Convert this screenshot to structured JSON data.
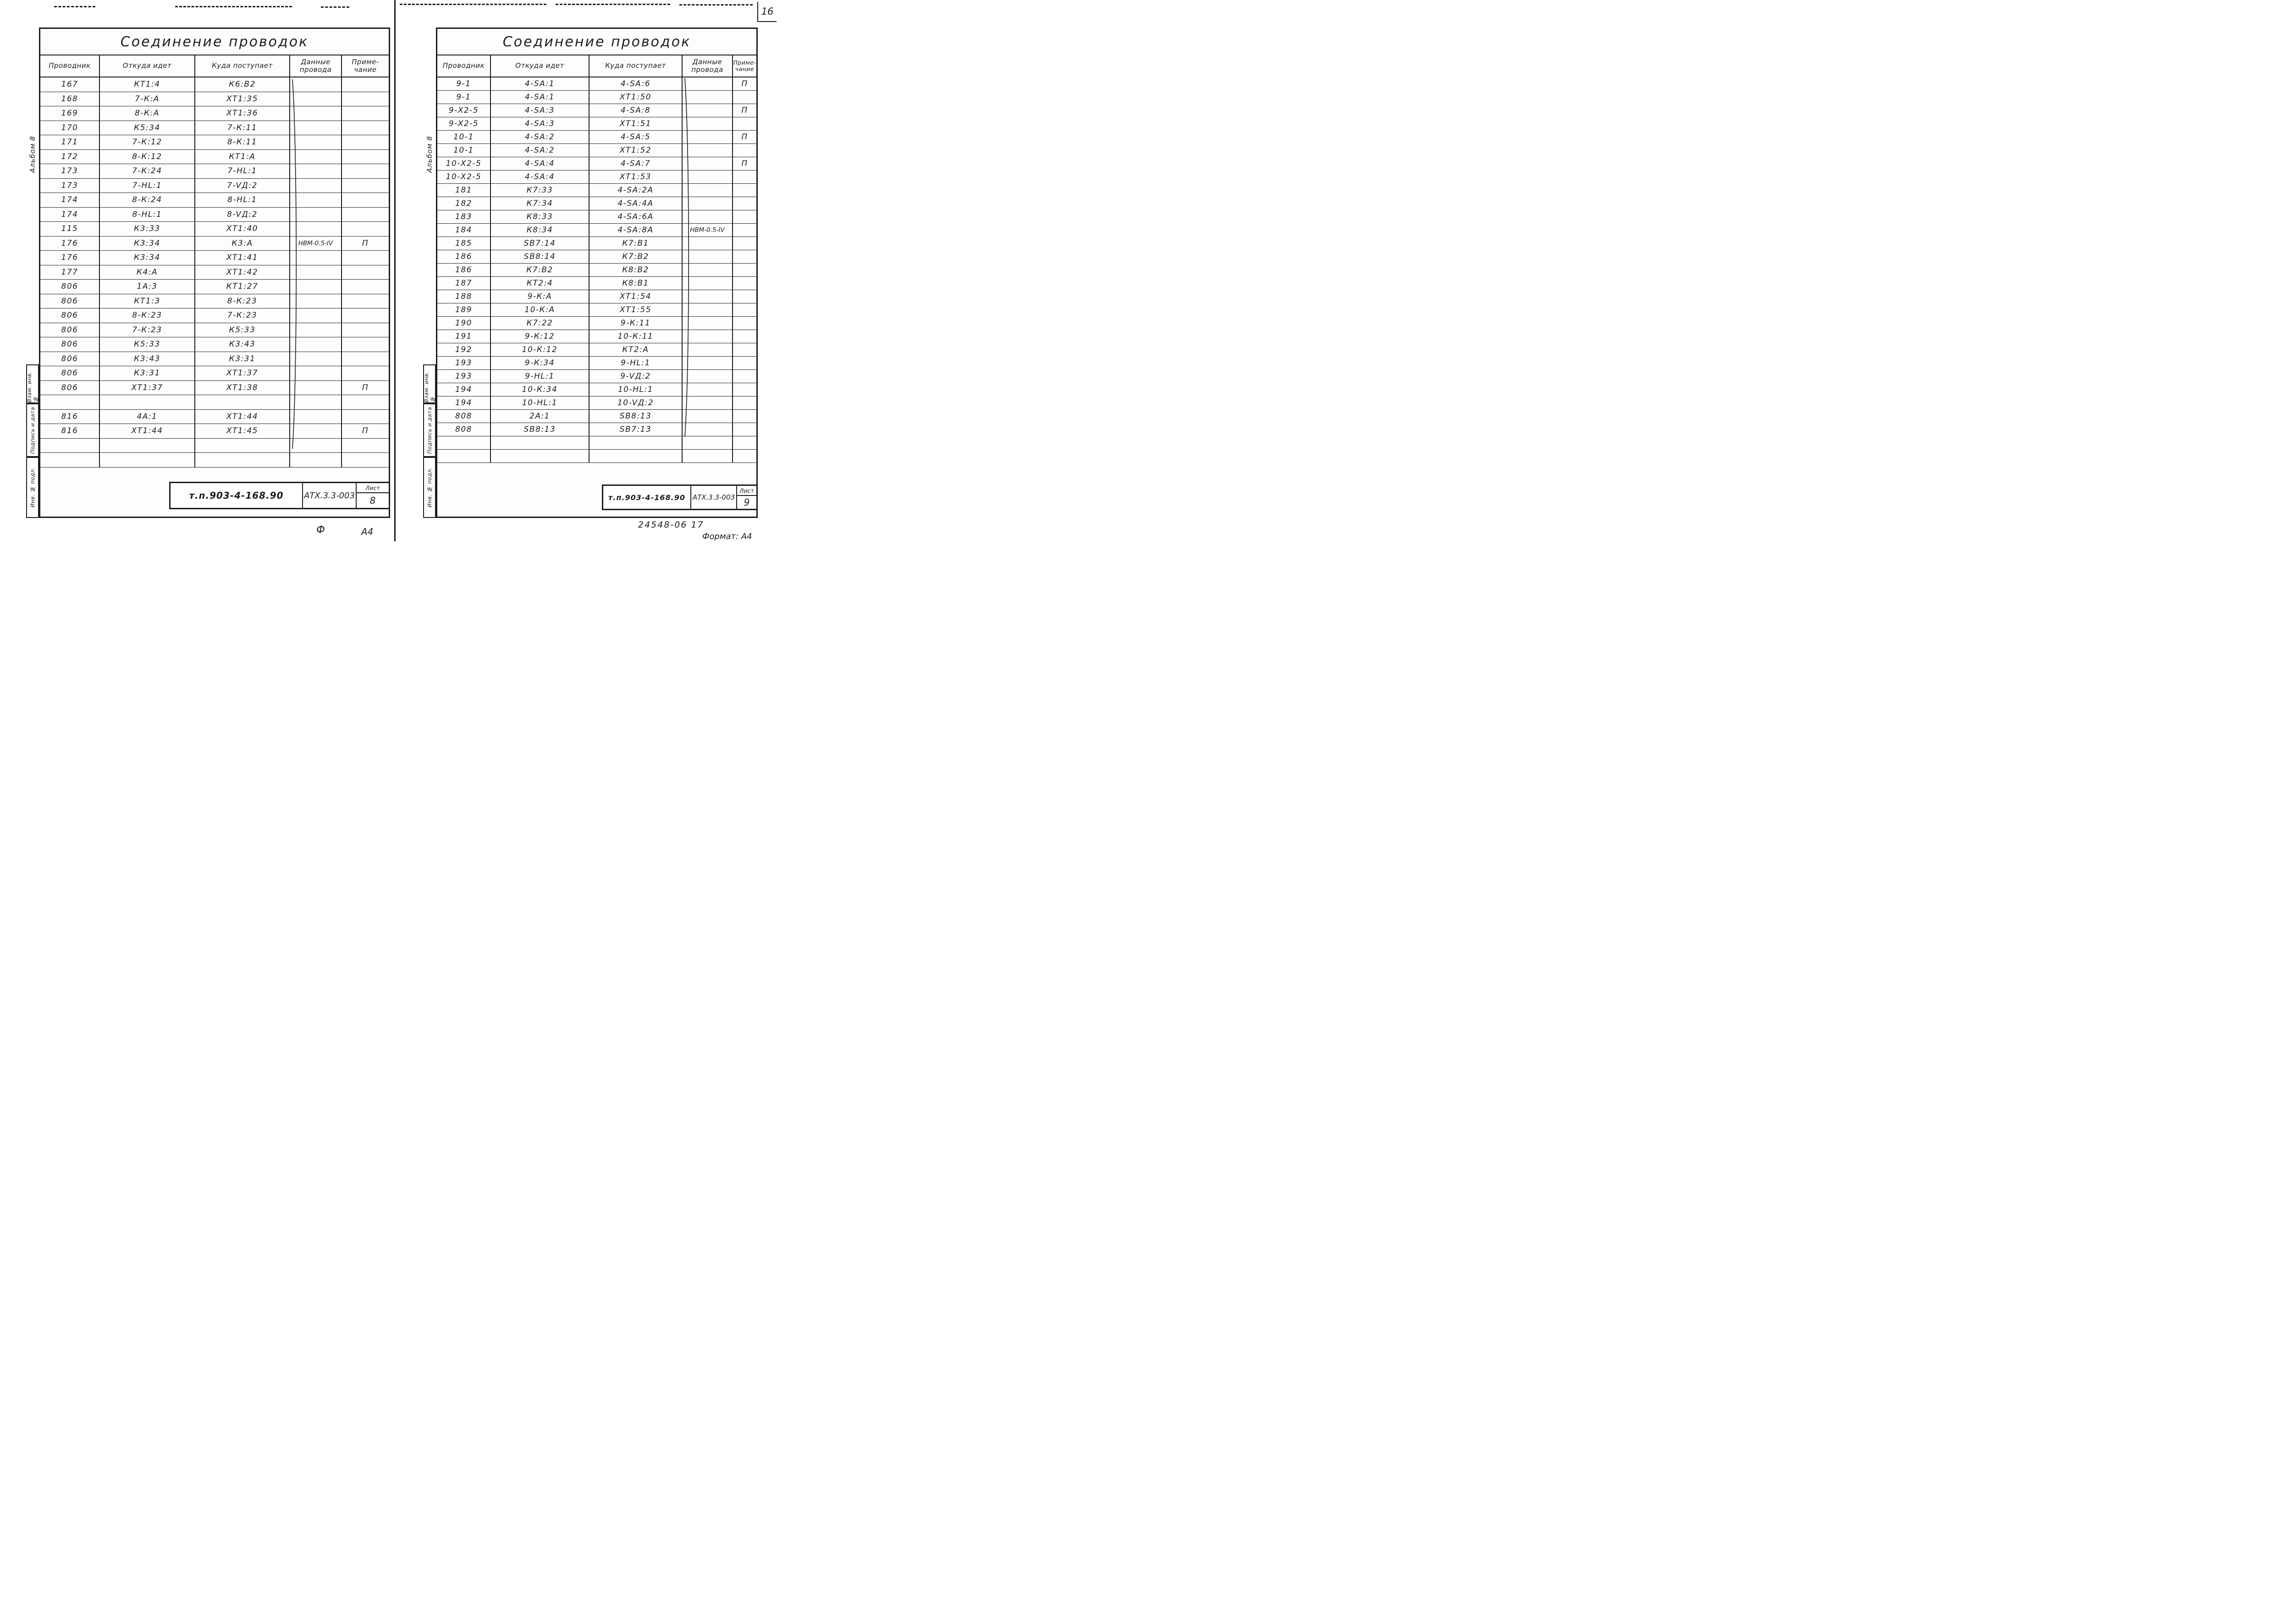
{
  "corner_page_number": "16",
  "annotations": {
    "left_mark_1": "Ф",
    "left_mark_2": "А4",
    "order_number": "24548-06  17",
    "format_note": "Формат: А4"
  },
  "pages": [
    {
      "title": "Соединение проводок",
      "album_label": "Альбом 8",
      "sidebar_labels": [
        "Взам. инв. №",
        "Подпись и дата",
        "Инв. № подл."
      ],
      "columns": [
        "Проводник",
        "Откуда идет",
        "Куда поступает",
        "Данные\nпровода",
        "Приме-\nчание"
      ],
      "wire_brace_label": "НВМ-0.5-IV",
      "rows": [
        [
          "167",
          "КТ1:4",
          "К6:В2",
          "",
          ""
        ],
        [
          "168",
          "7-К:А",
          "ХТ1:35",
          "",
          ""
        ],
        [
          "169",
          "8-К:А",
          "ХТ1:36",
          "",
          ""
        ],
        [
          "170",
          "К5:34",
          "7-К:11",
          "",
          ""
        ],
        [
          "171",
          "7-К:12",
          "8-К:11",
          "",
          ""
        ],
        [
          "172",
          "8-К:12",
          "КТ1:А",
          "",
          ""
        ],
        [
          "173",
          "7-К:24",
          "7-HL:1",
          "",
          ""
        ],
        [
          "173",
          "7-HL:1",
          "7-VД:2",
          "",
          ""
        ],
        [
          "174",
          "8-К:24",
          "8-HL:1",
          "",
          ""
        ],
        [
          "174",
          "8-HL:1",
          "8-VД:2",
          "",
          ""
        ],
        [
          "115",
          "К3:33",
          "ХТ1:40",
          "",
          ""
        ],
        [
          "176",
          "К3:34",
          "К3:А",
          "НВМ-0.5-IV",
          "П"
        ],
        [
          "176",
          "К3:34",
          "ХТ1:41",
          "",
          ""
        ],
        [
          "177",
          "К4:А",
          "ХТ1:42",
          "",
          ""
        ],
        [
          "806",
          "1А:3",
          "КТ1:27",
          "",
          ""
        ],
        [
          "806",
          "КТ1:3",
          "8-К:23",
          "",
          ""
        ],
        [
          "806",
          "8-К:23",
          "7-К:23",
          "",
          ""
        ],
        [
          "806",
          "7-К:23",
          "К5:33",
          "",
          ""
        ],
        [
          "806",
          "К5:33",
          "К3:43",
          "",
          ""
        ],
        [
          "806",
          "К3:43",
          "К3:31",
          "",
          ""
        ],
        [
          "806",
          "К3:31",
          "ХТ1:37",
          "",
          ""
        ],
        [
          "806",
          "ХТ1:37",
          "ХТ1:38",
          "",
          "П"
        ],
        [
          "",
          "",
          "",
          "",
          ""
        ],
        [
          "816",
          "4А:1",
          "ХТ1:44",
          "",
          ""
        ],
        [
          "816",
          "ХТ1:44",
          "ХТ1:45",
          "",
          "П"
        ],
        [
          "",
          "",
          "",
          "",
          ""
        ],
        [
          "",
          "",
          "",
          "",
          ""
        ]
      ],
      "footer": {
        "doc_number": "т.п.903-4-168.90",
        "code": "АТХ.3.3-003",
        "sheet_label": "Лист",
        "sheet_number": "8"
      }
    },
    {
      "title": "Соединение проводок",
      "album_label": "Альбом 8",
      "sidebar_labels": [
        "Взам. инв. №",
        "Подпись и дата",
        "Инв. № подл."
      ],
      "columns": [
        "Проводник",
        "Откуда идет",
        "Куда поступает",
        "Данные\nпровода",
        "Приме-\nчание"
      ],
      "wire_brace_label": "НВМ-0.5-IV",
      "rows": [
        [
          "9-1",
          "4-SA:1",
          "4-SA:6",
          "",
          "П"
        ],
        [
          "9-1",
          "4-SA:1",
          "ХТ1:50",
          "",
          ""
        ],
        [
          "9-Х2-5",
          "4-SA:3",
          "4-SA:8",
          "",
          "П"
        ],
        [
          "9-Х2-5",
          "4-SA:3",
          "ХТ1:51",
          "",
          ""
        ],
        [
          "10-1",
          "4-SA:2",
          "4-SA:5",
          "",
          "П"
        ],
        [
          "10-1",
          "4-SA:2",
          "ХТ1:52",
          "",
          ""
        ],
        [
          "10-Х2-5",
          "4-SA:4",
          "4-SA:7",
          "",
          "П"
        ],
        [
          "10-Х2-5",
          "4-SA:4",
          "ХТ1:53",
          "",
          ""
        ],
        [
          "181",
          "К7:33",
          "4-SA:2А",
          "",
          ""
        ],
        [
          "182",
          "К7:34",
          "4-SA:4А",
          "",
          ""
        ],
        [
          "183",
          "К8:33",
          "4-SA:6А",
          "",
          ""
        ],
        [
          "184",
          "К8:34",
          "4-SA:8А",
          "НВМ-0.5-IV",
          ""
        ],
        [
          "185",
          "SB7:14",
          "К7:В1",
          "",
          ""
        ],
        [
          "186",
          "SB8:14",
          "К7:В2",
          "",
          ""
        ],
        [
          "186",
          "К7:В2",
          "К8:В2",
          "",
          ""
        ],
        [
          "187",
          "КТ2:4",
          "К8:В1",
          "",
          ""
        ],
        [
          "188",
          "9-К:А",
          "ХТ1:54",
          "",
          ""
        ],
        [
          "189",
          "10-К:А",
          "ХТ1:55",
          "",
          ""
        ],
        [
          "190",
          "К7:22",
          "9-К:11",
          "",
          ""
        ],
        [
          "191",
          "9-К:12",
          "10-К:11",
          "",
          ""
        ],
        [
          "192",
          "10-К:12",
          "КТ2:А",
          "",
          ""
        ],
        [
          "193",
          "9-К:34",
          "9-HL:1",
          "",
          ""
        ],
        [
          "193",
          "9-HL:1",
          "9-VД:2",
          "",
          ""
        ],
        [
          "194",
          "10-К:34",
          "10-HL:1",
          "",
          ""
        ],
        [
          "194",
          "10-HL:1",
          "10-VД:2",
          "",
          ""
        ],
        [
          "808",
          "2А:1",
          "SB8:13",
          "",
          ""
        ],
        [
          "808",
          "SB8:13",
          "SB7:13",
          "",
          ""
        ],
        [
          "",
          "",
          "",
          "",
          ""
        ],
        [
          "",
          "",
          "",
          "",
          ""
        ]
      ],
      "footer": {
        "doc_number": "т.п.903-4-168.90",
        "code": "АТХ.3.3-003",
        "sheet_label": "Лист",
        "sheet_number": "9"
      }
    }
  ]
}
